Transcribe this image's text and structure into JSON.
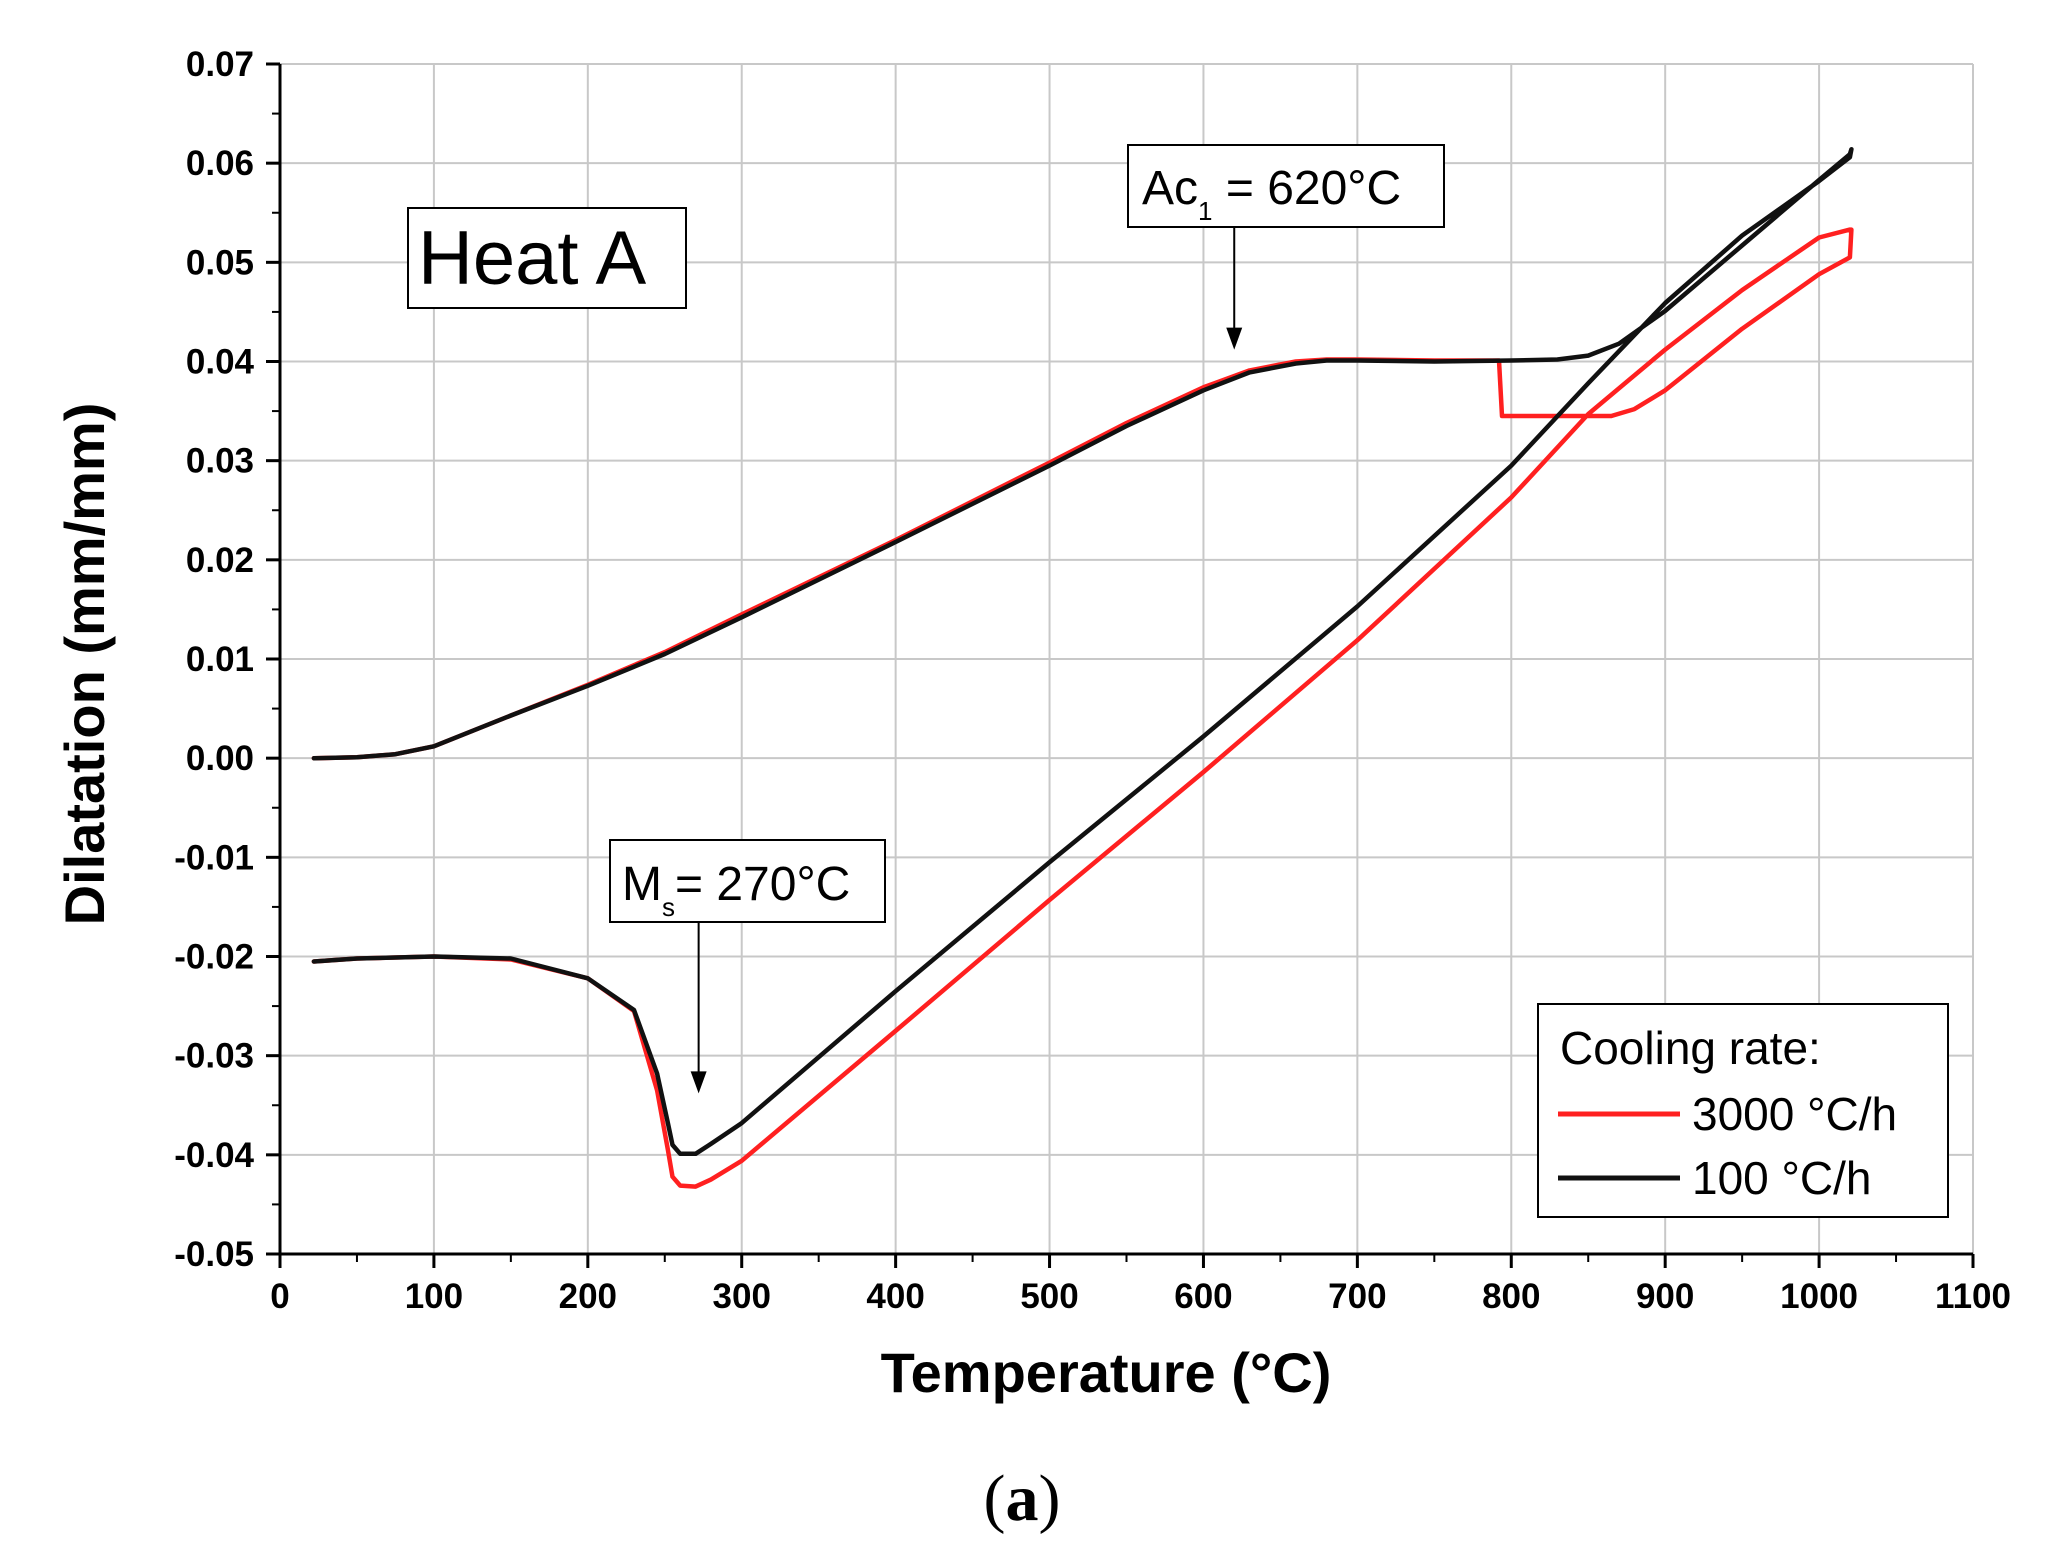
{
  "chart_data": {
    "type": "line",
    "title": "Heat A",
    "xlabel": "Temperature (°C)",
    "ylabel": "Dilatation (mm/mm)",
    "xlim": [
      0,
      1100
    ],
    "ylim": [
      -0.05,
      0.07
    ],
    "grid": true,
    "x_ticks": [
      0,
      100,
      200,
      300,
      400,
      500,
      600,
      700,
      800,
      900,
      1000,
      1100
    ],
    "y_ticks": [
      0.07,
      0.06,
      0.05,
      0.04,
      0.03,
      0.02,
      0.01,
      0.0,
      -0.01,
      -0.02,
      -0.03,
      -0.04,
      -0.05
    ],
    "x_tick_labels": [
      "0",
      "100",
      "200",
      "300",
      "400",
      "500",
      "600",
      "700",
      "800",
      "900",
      "1000",
      "1100"
    ],
    "y_tick_labels": [
      "0.07",
      "0.06",
      "0.05",
      "0.04",
      "0.03",
      "0.02",
      "0.01",
      "0.00",
      "-0.01",
      "-0.02",
      "-0.03",
      "-0.04",
      "-0.05"
    ],
    "legend": {
      "title": "Cooling rate:",
      "position": "bottom-right"
    },
    "annotations": [
      {
        "base": "Ac",
        "sub": "1",
        "rest": " = 620°C",
        "arrow_x": 620,
        "arrow_y": 0.0412
      },
      {
        "base": "M",
        "sub": "s",
        "rest": "= 270°C",
        "arrow_x": 272,
        "arrow_y": -0.0338
      }
    ],
    "series": [
      {
        "name": "3000 °C/h",
        "color": "#ff2020",
        "x": [
          22,
          50,
          75,
          100,
          150,
          200,
          250,
          300,
          400,
          500,
          550,
          600,
          630,
          660,
          680,
          700,
          750,
          792,
          794,
          800,
          850,
          865,
          880,
          900,
          950,
          1000,
          1020,
          1021,
          1020,
          1000,
          950,
          900,
          850,
          800,
          700,
          600,
          500,
          400,
          300,
          280,
          270,
          260,
          255,
          252,
          245,
          230,
          200,
          150,
          100,
          50,
          22
        ],
        "y": [
          0.0,
          0.0001,
          0.0004,
          0.0012,
          0.0043,
          0.0074,
          0.0107,
          0.0145,
          0.022,
          0.0298,
          0.0338,
          0.0374,
          0.0391,
          0.04,
          0.0402,
          0.0402,
          0.0401,
          0.0401,
          0.0345,
          0.0345,
          0.0345,
          0.0345,
          0.0352,
          0.0371,
          0.0433,
          0.0488,
          0.0505,
          0.0533,
          0.0533,
          0.0525,
          0.0472,
          0.0412,
          0.0347,
          0.0263,
          0.0119,
          -0.0014,
          -0.0143,
          -0.0275,
          -0.0406,
          -0.0425,
          -0.0432,
          -0.0431,
          -0.0422,
          -0.0395,
          -0.0335,
          -0.0255,
          -0.0222,
          -0.0203,
          -0.02,
          -0.0202,
          -0.0205
        ]
      },
      {
        "name": "100 °C/h",
        "color": "#111111",
        "x": [
          22,
          50,
          75,
          100,
          150,
          200,
          250,
          300,
          400,
          500,
          550,
          600,
          630,
          660,
          680,
          700,
          750,
          800,
          830,
          850,
          870,
          900,
          950,
          1000,
          1020,
          1021,
          1020,
          1000,
          950,
          900,
          850,
          800,
          700,
          600,
          500,
          400,
          300,
          280,
          270,
          260,
          255,
          252,
          245,
          230,
          200,
          150,
          100,
          50,
          22
        ],
        "y": [
          0.0,
          0.0001,
          0.0004,
          0.0012,
          0.0043,
          0.0073,
          0.0105,
          0.0142,
          0.0218,
          0.0295,
          0.0335,
          0.0371,
          0.0389,
          0.0398,
          0.0401,
          0.0401,
          0.04,
          0.0401,
          0.0402,
          0.0406,
          0.0418,
          0.0451,
          0.0517,
          0.0583,
          0.0609,
          0.0614,
          0.0606,
          0.0582,
          0.0527,
          0.0459,
          0.0378,
          0.0295,
          0.0153,
          0.0022,
          -0.0105,
          -0.0235,
          -0.0368,
          -0.0389,
          -0.0399,
          -0.0399,
          -0.039,
          -0.0368,
          -0.0318,
          -0.0254,
          -0.0222,
          -0.0202,
          -0.02,
          -0.0202,
          -0.0205
        ]
      }
    ]
  },
  "caption": {
    "open": "(",
    "letter": "a",
    "close": ")"
  }
}
